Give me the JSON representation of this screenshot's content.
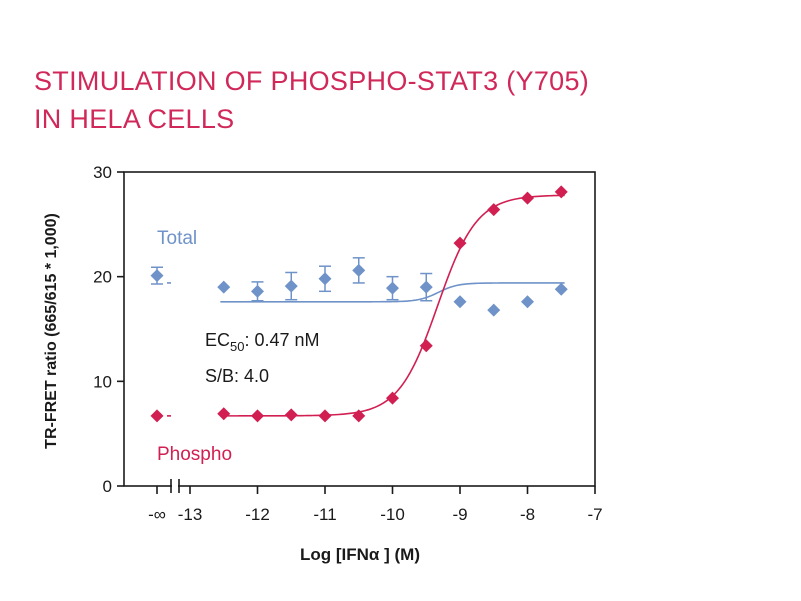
{
  "title_lines": [
    "STIMULATION OF PHOSPHO-STAT3 (Y705)",
    "IN HELA CELLS"
  ],
  "colors": {
    "title": "#d1285a",
    "total": "#6f93c8",
    "phospho": "#d11f52",
    "axis": "#1a1a1a"
  },
  "chart_data": {
    "type": "scatter",
    "title": "STIMULATION OF PHOSPHO-STAT3 (Y705) IN HELA CELLS",
    "xlabel": "Log [IFNα ] (M)",
    "ylabel": "TR-FRET ratio (665/615 * 1,000)",
    "xlim": [
      -13,
      -7
    ],
    "ylim": [
      0,
      30
    ],
    "x_axis_break": true,
    "x_ticks": [
      {
        "value": "-inf",
        "label": "-∞"
      },
      {
        "value": -13,
        "label": "-13"
      },
      {
        "value": -12,
        "label": "-12"
      },
      {
        "value": -11,
        "label": "-11"
      },
      {
        "value": -10,
        "label": "-10"
      },
      {
        "value": -9,
        "label": "-9"
      },
      {
        "value": -8,
        "label": "-8"
      },
      {
        "value": -7,
        "label": "-7"
      }
    ],
    "y_ticks": [
      0,
      10,
      20,
      30
    ],
    "grid": false,
    "annotations": [
      "EC50: 0.47 nM",
      "S/B: 4.0"
    ],
    "ec50_label": {
      "main": "EC",
      "sub": "50",
      "rest": ": 0.47 nM"
    },
    "sb_label": "S/B: 4.0",
    "series": [
      {
        "name": "Total",
        "label": "Total",
        "marker": "diamond",
        "fit": "flat",
        "points": [
          {
            "x": "-inf",
            "y": 20.1,
            "err": 0.8
          },
          {
            "x": -12.5,
            "y": 19.0,
            "err": 0
          },
          {
            "x": -12.0,
            "y": 18.6,
            "err": 0.9
          },
          {
            "x": -11.5,
            "y": 19.1,
            "err": 1.3
          },
          {
            "x": -11.0,
            "y": 19.8,
            "err": 1.2
          },
          {
            "x": -10.5,
            "y": 20.6,
            "err": 1.2
          },
          {
            "x": -10.0,
            "y": 18.9,
            "err": 1.1
          },
          {
            "x": -9.5,
            "y": 19.0,
            "err": 1.3
          },
          {
            "x": -9.0,
            "y": 17.6,
            "err": 0
          },
          {
            "x": -8.5,
            "y": 16.8,
            "err": 0
          },
          {
            "x": -8.0,
            "y": 17.6,
            "err": 0
          },
          {
            "x": -7.5,
            "y": 18.8,
            "err": 0
          }
        ],
        "fit_params": {
          "top": 19.4,
          "bottom": 17.6,
          "logEC50": -9.32,
          "hill": 3
        }
      },
      {
        "name": "Phospho",
        "label": "Phospho",
        "marker": "diamond",
        "fit": "sigmoid",
        "points": [
          {
            "x": "-inf",
            "y": 6.7
          },
          {
            "x": -12.5,
            "y": 6.9
          },
          {
            "x": -12.0,
            "y": 6.7
          },
          {
            "x": -11.5,
            "y": 6.8
          },
          {
            "x": -11.0,
            "y": 6.7
          },
          {
            "x": -10.5,
            "y": 6.7
          },
          {
            "x": -10.0,
            "y": 8.4
          },
          {
            "x": -9.5,
            "y": 13.4
          },
          {
            "x": -9.0,
            "y": 23.2
          },
          {
            "x": -8.5,
            "y": 26.4
          },
          {
            "x": -8.0,
            "y": 27.5
          },
          {
            "x": -7.5,
            "y": 28.1
          }
        ],
        "fit_params": {
          "bottom": 6.7,
          "top": 27.8,
          "logEC50": -9.33,
          "hill": 1.5
        }
      }
    ]
  }
}
